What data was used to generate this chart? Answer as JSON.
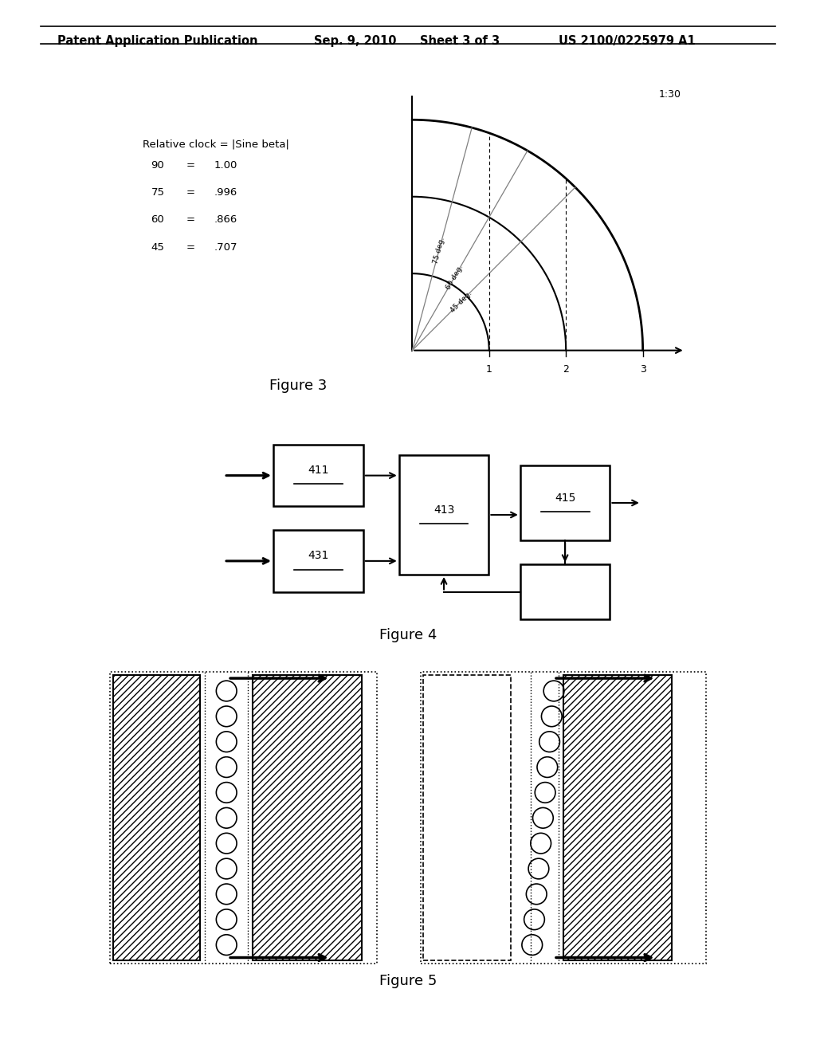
{
  "header_left": "Patent Application Publication",
  "header_date": "Sep. 9, 2010",
  "header_sheet": "Sheet 3 of 3",
  "header_right": "US 2100/0225979 A1",
  "fig3_title": "Figure 3",
  "fig4_title": "Figure 4",
  "fig5_title": "Figure 5",
  "fig3_label": "1:30",
  "fig3_text_title": "Relative clock = |Sine beta|",
  "fig3_table": [
    [
      "90",
      "=",
      "1.00"
    ],
    [
      "75",
      "=",
      ".996"
    ],
    [
      "60",
      "=",
      ".866"
    ],
    [
      "45",
      "=",
      ".707"
    ]
  ],
  "fig3_angle_labels": [
    "75 deg.",
    "60 deg.",
    "45 deg."
  ],
  "fig3_angles_deg": [
    75,
    60,
    45
  ],
  "fig3_x_ticks": [
    "1",
    "2",
    "3"
  ],
  "fig3_radii": [
    1.0,
    2.0,
    3.0
  ],
  "background_color": "#ffffff",
  "line_color": "#000000",
  "font_size_header": 11,
  "font_size_body": 10,
  "font_size_fig_label": 13
}
